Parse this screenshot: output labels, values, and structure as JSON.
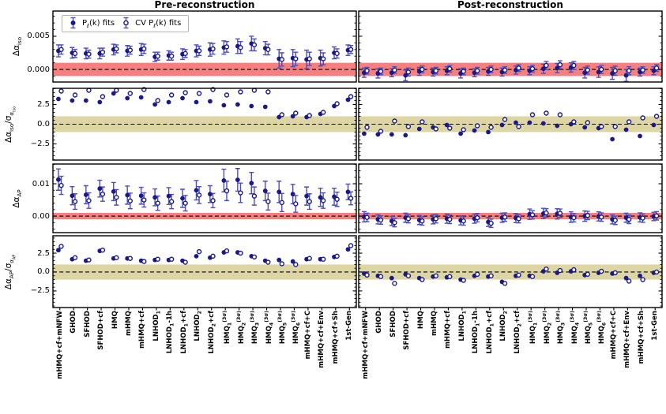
{
  "chart_data": {
    "type": "scatter",
    "figure_titles": {
      "pre": "Pre-reconstruction",
      "post": "Post-reconstruction"
    },
    "legend": {
      "entries": [
        {
          "marker": "filled",
          "label": "P_{ℓ}(k) fits"
        },
        {
          "marker": "open",
          "label": "CV P_{ℓ}(k) fits"
        }
      ],
      "position": "upper-left of first panel"
    },
    "colors": {
      "marker": "#191988",
      "errorbar": "#4d4dbb",
      "open_fill": "#ffffff",
      "red_band": "#f5807f",
      "olive_band": "#ddd6a4",
      "zero_line": "#000000"
    },
    "categories": [
      "mHMQ+cf+mNFW",
      "GHOD",
      "SFHOD",
      "SFHOD+cf",
      "HMQ",
      "mHMQ",
      "mHMQ+cf",
      "LNHOD_{1}",
      "LNHOD_{1}-1h",
      "LNHOD_{1}+cf",
      "LNHOD_{2}",
      "LNHOD_{2}+cf",
      "HMQ_{1}^{(3σ)}",
      "HMQ_{2}^{(3σ)}",
      "HMQ_{3}^{(3σ)}",
      "HMQ_{4}^{(3σ)}",
      "HMQ_{5}^{(3σ)}",
      "HMQ_{6}^{(3σ)}",
      "mHMQ+cf+C",
      "mHMQ+cf+Env",
      "mHMQ+cf+Sh",
      "1st-Gen"
    ],
    "rows": [
      {
        "ylabel": "Δα_{iso}",
        "ylim": [
          -0.0019,
          0.0088
        ],
        "minor_step": 0.001,
        "errorbars": true,
        "band": {
          "range": [
            -0.001,
            0.001
          ],
          "color": "#f5807f"
        },
        "yticks": [
          {
            "v": 0.005,
            "label": "0.005"
          },
          {
            "v": 0.0,
            "label": "0.000"
          }
        ]
      },
      {
        "ylabel": "Δα_{iso}/σ_{α_{iso}}",
        "ylim": [
          -4.55,
          4.55
        ],
        "minor_step": 0.5,
        "errorbars": false,
        "band": {
          "range": [
            -1,
            1
          ],
          "color": "#ddd6a4"
        },
        "yticks": [
          {
            "v": 2.5,
            "label": "2.5"
          },
          {
            "v": 0.0,
            "label": "0.0"
          },
          {
            "v": -2.5,
            "label": "−2.5"
          }
        ]
      },
      {
        "ylabel": "Δα_{AP}",
        "ylim": [
          -0.0051,
          0.0161
        ],
        "minor_step": 0.002,
        "errorbars": true,
        "band": {
          "range": [
            -0.001,
            0.001
          ],
          "color": "#f5807f"
        },
        "yticks": [
          {
            "v": 0.01,
            "label": "0.01"
          },
          {
            "v": 0.0,
            "label": "0.00"
          }
        ]
      },
      {
        "ylabel": "Δα_{AP}/σ_{α_{AP}}",
        "ylim": [
          -4.7,
          4.8
        ],
        "minor_step": 0.5,
        "errorbars": false,
        "band": {
          "range": [
            -1,
            1
          ],
          "color": "#ddd6a4"
        },
        "yticks": [
          {
            "v": 2.5,
            "label": "2.5"
          },
          {
            "v": 0.0,
            "label": "0.0"
          },
          {
            "v": -2.5,
            "label": "−2.5"
          }
        ]
      }
    ],
    "panels": {
      "pre": [
        {
          "filled": [
            0.0028,
            0.0025,
            0.0024,
            0.0024,
            0.003,
            0.0028,
            0.003,
            0.0019,
            0.0021,
            0.0023,
            0.0028,
            0.003,
            0.0033,
            0.0035,
            0.0039,
            0.0032,
            0.0016,
            0.0017,
            0.0015,
            0.0017,
            0.0025,
            0.0029
          ],
          "filled_err": [
            0.0009,
            0.0008,
            0.0008,
            0.0008,
            0.0008,
            0.0008,
            0.0009,
            0.0007,
            0.0007,
            0.0008,
            0.0009,
            0.001,
            0.001,
            0.0011,
            0.0011,
            0.001,
            0.0014,
            0.0013,
            0.0014,
            0.0012,
            0.0009,
            0.0008
          ],
          "open": [
            0.003,
            0.0024,
            0.0023,
            0.0026,
            0.0031,
            0.0029,
            0.0031,
            0.002,
            0.002,
            0.0024,
            0.0028,
            0.0031,
            0.0034,
            0.0033,
            0.0037,
            0.003,
            0.0015,
            0.0016,
            0.0016,
            0.0016,
            0.0024,
            0.003
          ],
          "open_err": [
            0.0007,
            0.0006,
            0.0006,
            0.0006,
            0.0006,
            0.0006,
            0.0007,
            0.0006,
            0.0006,
            0.0006,
            0.0007,
            0.0008,
            0.0008,
            0.0009,
            0.0009,
            0.0008,
            0.001,
            0.001,
            0.001,
            0.0009,
            0.0007,
            0.0006
          ]
        },
        {
          "filled": [
            3.2,
            3.0,
            3.0,
            2.8,
            3.9,
            3.3,
            3.4,
            2.5,
            2.8,
            3.3,
            2.8,
            2.9,
            2.4,
            2.5,
            2.3,
            2.2,
            0.9,
            1.0,
            0.9,
            1.3,
            2.3,
            3.1
          ],
          "open": [
            4.2,
            3.7,
            4.3,
            3.5,
            4.3,
            3.9,
            4.4,
            3.0,
            3.7,
            4.0,
            3.9,
            4.4,
            3.7,
            4.1,
            4.3,
            4.1,
            1.2,
            1.4,
            1.1,
            1.5,
            2.6,
            3.5
          ]
        },
        {
          "filled": [
            0.0113,
            0.0063,
            0.0066,
            0.0085,
            0.0076,
            0.0065,
            0.0063,
            0.0058,
            0.0062,
            0.0055,
            0.008,
            0.0068,
            0.011,
            0.0112,
            0.0102,
            0.0078,
            0.0075,
            0.0068,
            0.0062,
            0.0058,
            0.006,
            0.0075
          ],
          "filled_err": [
            0.0033,
            0.0028,
            0.0028,
            0.0026,
            0.0028,
            0.0028,
            0.0026,
            0.0026,
            0.0026,
            0.0028,
            0.003,
            0.0026,
            0.0035,
            0.0035,
            0.0033,
            0.003,
            0.0033,
            0.003,
            0.0028,
            0.0028,
            0.0026,
            0.0024
          ],
          "open": [
            0.0095,
            0.0045,
            0.0048,
            0.0068,
            0.0058,
            0.0047,
            0.005,
            0.004,
            0.0045,
            0.004,
            0.0065,
            0.0048,
            0.0078,
            0.0072,
            0.0062,
            0.0045,
            0.0042,
            0.0038,
            0.0045,
            0.0048,
            0.0052,
            0.0055
          ],
          "open_err": [
            0.0028,
            0.0024,
            0.0024,
            0.0022,
            0.0024,
            0.0024,
            0.0022,
            0.0022,
            0.0022,
            0.0024,
            0.0026,
            0.0022,
            0.003,
            0.003,
            0.0028,
            0.0026,
            0.0028,
            0.0026,
            0.0024,
            0.0024,
            0.0022,
            0.002
          ]
        },
        {
          "filled": [
            2.9,
            1.7,
            1.5,
            2.8,
            1.8,
            1.8,
            1.5,
            1.6,
            1.6,
            1.5,
            2.1,
            1.9,
            2.6,
            2.6,
            2.1,
            1.5,
            1.6,
            1.4,
            1.7,
            1.7,
            2.0,
            3.0
          ],
          "open": [
            3.4,
            1.9,
            1.6,
            2.9,
            1.9,
            1.8,
            1.4,
            1.7,
            1.7,
            1.3,
            2.7,
            2.1,
            2.8,
            2.5,
            2.0,
            1.3,
            1.1,
            1.0,
            1.8,
            1.7,
            2.1,
            3.5
          ]
        }
      ],
      "post": [
        {
          "filled": [
            -0.0005,
            -0.0006,
            -0.0005,
            -0.0009,
            -0.0003,
            -0.0004,
            -0.0002,
            -0.0006,
            -0.0005,
            -0.0003,
            -0.0004,
            -0.0001,
            -0.0002,
            0.0001,
            0.0002,
            0.0003,
            -0.0005,
            -0.0004,
            -0.0006,
            -0.0009,
            -0.0004,
            -0.0002
          ],
          "filled_err": [
            0.0007,
            0.0007,
            0.0006,
            0.0008,
            0.0006,
            0.0006,
            0.0006,
            0.0007,
            0.0006,
            0.0006,
            0.0006,
            0.0006,
            0.0006,
            0.0007,
            0.0007,
            0.0007,
            0.0008,
            0.0008,
            0.0009,
            0.0009,
            0.0006,
            0.0006
          ],
          "open": [
            -0.0002,
            -0.0003,
            -0.0001,
            -0.0004,
            0.0,
            -0.0002,
            0.0001,
            -0.0003,
            -0.0002,
            0.0,
            -0.0001,
            0.0002,
            0.0001,
            0.0006,
            0.0007,
            0.0006,
            -0.0001,
            0.0,
            -0.0002,
            -0.0002,
            -0.0001,
            0.0002
          ],
          "open_err": [
            0.0005,
            0.0005,
            0.0005,
            0.0006,
            0.0005,
            0.0005,
            0.0005,
            0.0005,
            0.0005,
            0.0005,
            0.0005,
            0.0005,
            0.0005,
            0.0006,
            0.0006,
            0.0006,
            0.0006,
            0.0006,
            0.0007,
            0.0006,
            0.0005,
            0.0005
          ]
        },
        {
          "filled": [
            -1.2,
            -1.3,
            -1.3,
            -1.4,
            -0.6,
            -0.4,
            -0.1,
            -1.2,
            -0.8,
            -1.0,
            -0.1,
            0.2,
            0.2,
            0.1,
            -0.2,
            0.0,
            -0.4,
            -0.5,
            -1.9,
            -0.7,
            -1.5,
            -0.1
          ],
          "open": [
            -0.4,
            -0.9,
            0.4,
            -0.3,
            0.3,
            -0.6,
            -0.5,
            -0.7,
            -0.2,
            -0.4,
            0.6,
            -0.3,
            1.2,
            1.4,
            1.2,
            0.3,
            0.2,
            -0.3,
            -0.3,
            0.3,
            0.8,
            1.0
          ]
        },
        {
          "filled": [
            -0.0002,
            -0.001,
            -0.0015,
            -0.0005,
            -0.0012,
            -0.001,
            -0.0008,
            -0.0013,
            -0.0008,
            -0.0018,
            -0.0005,
            -0.0006,
            0.0006,
            0.0008,
            0.0007,
            -0.0003,
            0.0,
            -0.0001,
            -0.001,
            -0.0005,
            -0.0004,
            -0.0001
          ],
          "filled_err": [
            0.0016,
            0.0014,
            0.0014,
            0.0014,
            0.0014,
            0.0014,
            0.0014,
            0.0014,
            0.0014,
            0.0014,
            0.0014,
            0.0014,
            0.0016,
            0.0016,
            0.0016,
            0.0016,
            0.0016,
            0.0014,
            0.0014,
            0.0014,
            0.0014,
            0.0013
          ],
          "open": [
            -0.0004,
            -0.0012,
            -0.002,
            -0.0008,
            -0.0015,
            -0.0008,
            -0.001,
            -0.0015,
            -0.0005,
            -0.0022,
            -0.0003,
            -0.0008,
            0.0004,
            0.001,
            0.0009,
            -0.0005,
            0.0002,
            -0.0003,
            -0.0013,
            -0.001,
            -0.0006,
            0.0001
          ],
          "open_err": [
            0.0013,
            0.0013,
            0.0013,
            0.0013,
            0.0013,
            0.0013,
            0.0013,
            0.0013,
            0.0013,
            0.0013,
            0.0013,
            0.0013,
            0.0013,
            0.0013,
            0.0013,
            0.0013,
            0.0013,
            0.0013,
            0.0013,
            0.0013,
            0.0013,
            0.0013
          ]
        },
        {
          "filled": [
            -0.2,
            -0.5,
            -0.8,
            -0.3,
            -0.8,
            -0.6,
            -0.7,
            -1.0,
            -0.5,
            -0.6,
            -1.3,
            -0.5,
            -0.5,
            0.1,
            -0.1,
            0.1,
            -0.4,
            -0.1,
            -0.2,
            -0.8,
            -0.5,
            -0.1
          ],
          "open": [
            -0.4,
            -0.6,
            -1.5,
            -0.5,
            -1.0,
            -0.5,
            -0.6,
            -1.1,
            -0.3,
            -0.5,
            -1.5,
            -0.4,
            -0.6,
            0.4,
            0.2,
            0.3,
            -0.3,
            0.1,
            -0.1,
            -1.2,
            -1.0,
            0.0
          ]
        }
      ]
    }
  }
}
